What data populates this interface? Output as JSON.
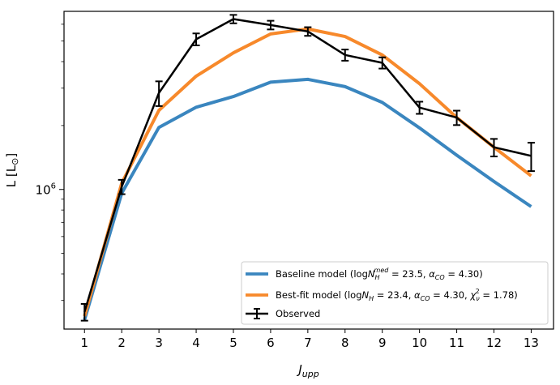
{
  "chart_data": {
    "type": "line",
    "title": "",
    "xlabel": "J",
    "xlabel_sub": "upp",
    "ylabel": "L [L",
    "ylabel_sun": "⊙",
    "ylabel_close": "]",
    "yscale": "log",
    "ylim": [
      220000,
      6900000
    ],
    "xlim": [
      0.45,
      13.6
    ],
    "x": [
      1,
      2,
      3,
      4,
      5,
      6,
      7,
      8,
      9,
      10,
      11,
      12,
      13
    ],
    "x_tick_labels": [
      "1",
      "2",
      "3",
      "4",
      "5",
      "6",
      "7",
      "8",
      "9",
      "10",
      "11",
      "12",
      "13"
    ],
    "y_tick_labels": [
      {
        "value": 1000000,
        "base": "10",
        "exp": "6"
      }
    ],
    "grid": false,
    "legend": {
      "placement": "lower-right"
    },
    "series": [
      {
        "key": "baseline",
        "name": "Baseline model (logN",
        "name_parts": [
          "Baseline model (log",
          "N",
          "H",
          "med",
          " = 23.5, ",
          "α",
          "CO",
          " = 4.30)"
        ],
        "color": "#3a86bf",
        "style": "line",
        "values": [
          243000,
          960000,
          1960000,
          2440000,
          2740000,
          3200000,
          3300000,
          3050000,
          2570000,
          1950000,
          1450000,
          1090000,
          830000
        ]
      },
      {
        "key": "bestfit",
        "name": "Best-fit model",
        "name_parts": [
          "Best-fit model (log",
          "N",
          "H",
          " = 23.4, ",
          "α",
          "CO",
          " = 4.30, ",
          "χ",
          "ν",
          "2",
          " = 1.78)"
        ],
        "color": "#f7892b",
        "style": "line",
        "values": [
          253000,
          1070000,
          2360000,
          3420000,
          4400000,
          5400000,
          5700000,
          5250000,
          4300000,
          3150000,
          2180000,
          1580000,
          1160000
        ]
      },
      {
        "key": "observed",
        "name": "Observed",
        "color": "#000000",
        "style": "errorbar",
        "values": [
          265000,
          1030000,
          2850000,
          5100000,
          6350000,
          5950000,
          5550000,
          4300000,
          3950000,
          2430000,
          2180000,
          1580000,
          1440000
        ],
        "errors": [
          24000,
          80000,
          380000,
          330000,
          290000,
          280000,
          260000,
          260000,
          240000,
          160000,
          170000,
          150000,
          220000
        ]
      }
    ]
  }
}
